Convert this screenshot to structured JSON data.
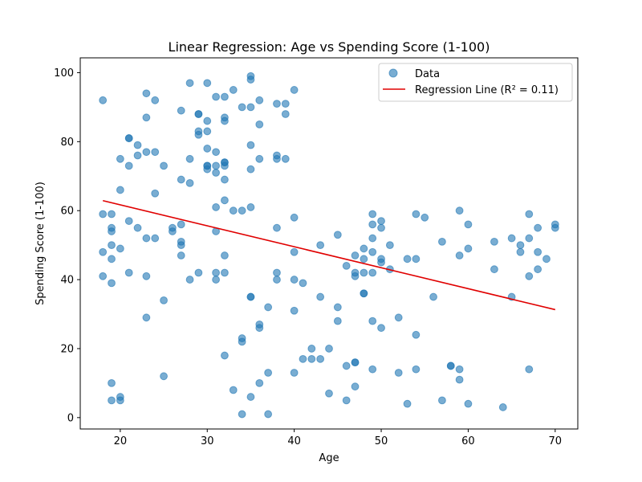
{
  "chart_data": {
    "type": "scatter",
    "title": "Linear Regression: Age vs Spending Score (1-100)",
    "xlabel": "Age",
    "ylabel": "Spending Score (1-100)",
    "xlim": [
      15.4,
      72.6
    ],
    "ylim": [
      -3.3,
      104.3
    ],
    "xticks": [
      20,
      30,
      40,
      50,
      60,
      70
    ],
    "yticks": [
      0,
      20,
      40,
      60,
      80,
      100
    ],
    "grid": false,
    "legend_position": "top-right",
    "legend": [
      {
        "label": "Data",
        "kind": "marker",
        "color": "#1f77b4"
      },
      {
        "label": "Regression Line (R² = 0.11)",
        "kind": "line",
        "color": "#e00000"
      }
    ],
    "series": [
      {
        "name": "Data",
        "color": "#1f77b4",
        "points": [
          [
            18,
            92
          ],
          [
            18,
            59
          ],
          [
            18,
            48
          ],
          [
            18,
            41
          ],
          [
            19,
            59
          ],
          [
            19,
            55
          ],
          [
            19,
            54
          ],
          [
            19,
            50
          ],
          [
            19,
            46
          ],
          [
            19,
            39
          ],
          [
            19,
            10
          ],
          [
            19,
            5
          ],
          [
            20,
            75
          ],
          [
            20,
            66
          ],
          [
            20,
            49
          ],
          [
            20,
            6
          ],
          [
            20,
            5
          ],
          [
            21,
            81
          ],
          [
            21,
            81
          ],
          [
            21,
            73
          ],
          [
            21,
            57
          ],
          [
            21,
            42
          ],
          [
            22,
            79
          ],
          [
            22,
            76
          ],
          [
            22,
            55
          ],
          [
            23,
            94
          ],
          [
            23,
            87
          ],
          [
            23,
            77
          ],
          [
            23,
            52
          ],
          [
            23,
            41
          ],
          [
            23,
            29
          ],
          [
            24,
            92
          ],
          [
            24,
            77
          ],
          [
            24,
            65
          ],
          [
            24,
            52
          ],
          [
            25,
            73
          ],
          [
            25,
            34
          ],
          [
            25,
            12
          ],
          [
            26,
            55
          ],
          [
            26,
            54
          ],
          [
            27,
            89
          ],
          [
            27,
            69
          ],
          [
            27,
            56
          ],
          [
            27,
            51
          ],
          [
            27,
            50
          ],
          [
            27,
            47
          ],
          [
            28,
            97
          ],
          [
            28,
            75
          ],
          [
            28,
            68
          ],
          [
            28,
            40
          ],
          [
            29,
            88
          ],
          [
            29,
            88
          ],
          [
            29,
            83
          ],
          [
            29,
            82
          ],
          [
            29,
            42
          ],
          [
            30,
            97
          ],
          [
            30,
            86
          ],
          [
            30,
            83
          ],
          [
            30,
            78
          ],
          [
            30,
            73
          ],
          [
            30,
            73
          ],
          [
            30,
            72
          ],
          [
            31,
            93
          ],
          [
            31,
            77
          ],
          [
            31,
            73
          ],
          [
            31,
            71
          ],
          [
            31,
            61
          ],
          [
            31,
            54
          ],
          [
            31,
            42
          ],
          [
            31,
            40
          ],
          [
            32,
            93
          ],
          [
            32,
            87
          ],
          [
            32,
            86
          ],
          [
            32,
            74
          ],
          [
            32,
            74
          ],
          [
            32,
            73
          ],
          [
            32,
            69
          ],
          [
            32,
            63
          ],
          [
            32,
            47
          ],
          [
            32,
            42
          ],
          [
            32,
            18
          ],
          [
            33,
            95
          ],
          [
            33,
            60
          ],
          [
            33,
            8
          ],
          [
            34,
            90
          ],
          [
            34,
            60
          ],
          [
            34,
            23
          ],
          [
            34,
            22
          ],
          [
            34,
            1
          ],
          [
            35,
            99
          ],
          [
            35,
            98
          ],
          [
            35,
            90
          ],
          [
            35,
            79
          ],
          [
            35,
            72
          ],
          [
            35,
            61
          ],
          [
            35,
            35
          ],
          [
            35,
            35
          ],
          [
            35,
            6
          ],
          [
            36,
            92
          ],
          [
            36,
            85
          ],
          [
            36,
            75
          ],
          [
            36,
            27
          ],
          [
            36,
            26
          ],
          [
            36,
            10
          ],
          [
            37,
            32
          ],
          [
            37,
            13
          ],
          [
            37,
            1
          ],
          [
            38,
            91
          ],
          [
            38,
            76
          ],
          [
            38,
            75
          ],
          [
            38,
            55
          ],
          [
            38,
            42
          ],
          [
            38,
            40
          ],
          [
            39,
            91
          ],
          [
            39,
            88
          ],
          [
            39,
            75
          ],
          [
            40,
            95
          ],
          [
            40,
            58
          ],
          [
            40,
            48
          ],
          [
            40,
            40
          ],
          [
            40,
            31
          ],
          [
            40,
            13
          ],
          [
            41,
            39
          ],
          [
            41,
            17
          ],
          [
            42,
            20
          ],
          [
            42,
            17
          ],
          [
            43,
            50
          ],
          [
            43,
            35
          ],
          [
            43,
            17
          ],
          [
            44,
            20
          ],
          [
            44,
            7
          ],
          [
            45,
            53
          ],
          [
            45,
            32
          ],
          [
            45,
            28
          ],
          [
            46,
            44
          ],
          [
            46,
            15
          ],
          [
            46,
            5
          ],
          [
            47,
            47
          ],
          [
            47,
            42
          ],
          [
            47,
            41
          ],
          [
            47,
            16
          ],
          [
            47,
            16
          ],
          [
            47,
            9
          ],
          [
            48,
            49
          ],
          [
            48,
            46
          ],
          [
            48,
            42
          ],
          [
            48,
            36
          ],
          [
            48,
            36
          ],
          [
            49,
            59
          ],
          [
            49,
            56
          ],
          [
            49,
            52
          ],
          [
            49,
            48
          ],
          [
            49,
            42
          ],
          [
            49,
            28
          ],
          [
            49,
            14
          ],
          [
            50,
            57
          ],
          [
            50,
            55
          ],
          [
            50,
            46
          ],
          [
            50,
            45
          ],
          [
            50,
            26
          ],
          [
            51,
            50
          ],
          [
            51,
            43
          ],
          [
            52,
            29
          ],
          [
            52,
            13
          ],
          [
            53,
            46
          ],
          [
            53,
            4
          ],
          [
            54,
            59
          ],
          [
            54,
            46
          ],
          [
            54,
            24
          ],
          [
            54,
            14
          ],
          [
            55,
            58
          ],
          [
            56,
            35
          ],
          [
            57,
            51
          ],
          [
            57,
            5
          ],
          [
            58,
            15
          ],
          [
            58,
            15
          ],
          [
            59,
            60
          ],
          [
            59,
            47
          ],
          [
            59,
            14
          ],
          [
            59,
            11
          ],
          [
            60,
            56
          ],
          [
            60,
            49
          ],
          [
            60,
            4
          ],
          [
            63,
            51
          ],
          [
            63,
            43
          ],
          [
            64,
            3
          ],
          [
            65,
            52
          ],
          [
            65,
            35
          ],
          [
            66,
            50
          ],
          [
            66,
            48
          ],
          [
            67,
            59
          ],
          [
            67,
            52
          ],
          [
            67,
            41
          ],
          [
            67,
            14
          ],
          [
            68,
            55
          ],
          [
            68,
            48
          ],
          [
            68,
            43
          ],
          [
            69,
            46
          ],
          [
            70,
            56
          ],
          [
            70,
            55
          ]
        ]
      },
      {
        "name": "Regression Line (R² = 0.11)",
        "color": "#e00000",
        "type": "line",
        "points": [
          [
            18,
            62.9
          ],
          [
            70,
            31.3
          ]
        ]
      }
    ]
  }
}
